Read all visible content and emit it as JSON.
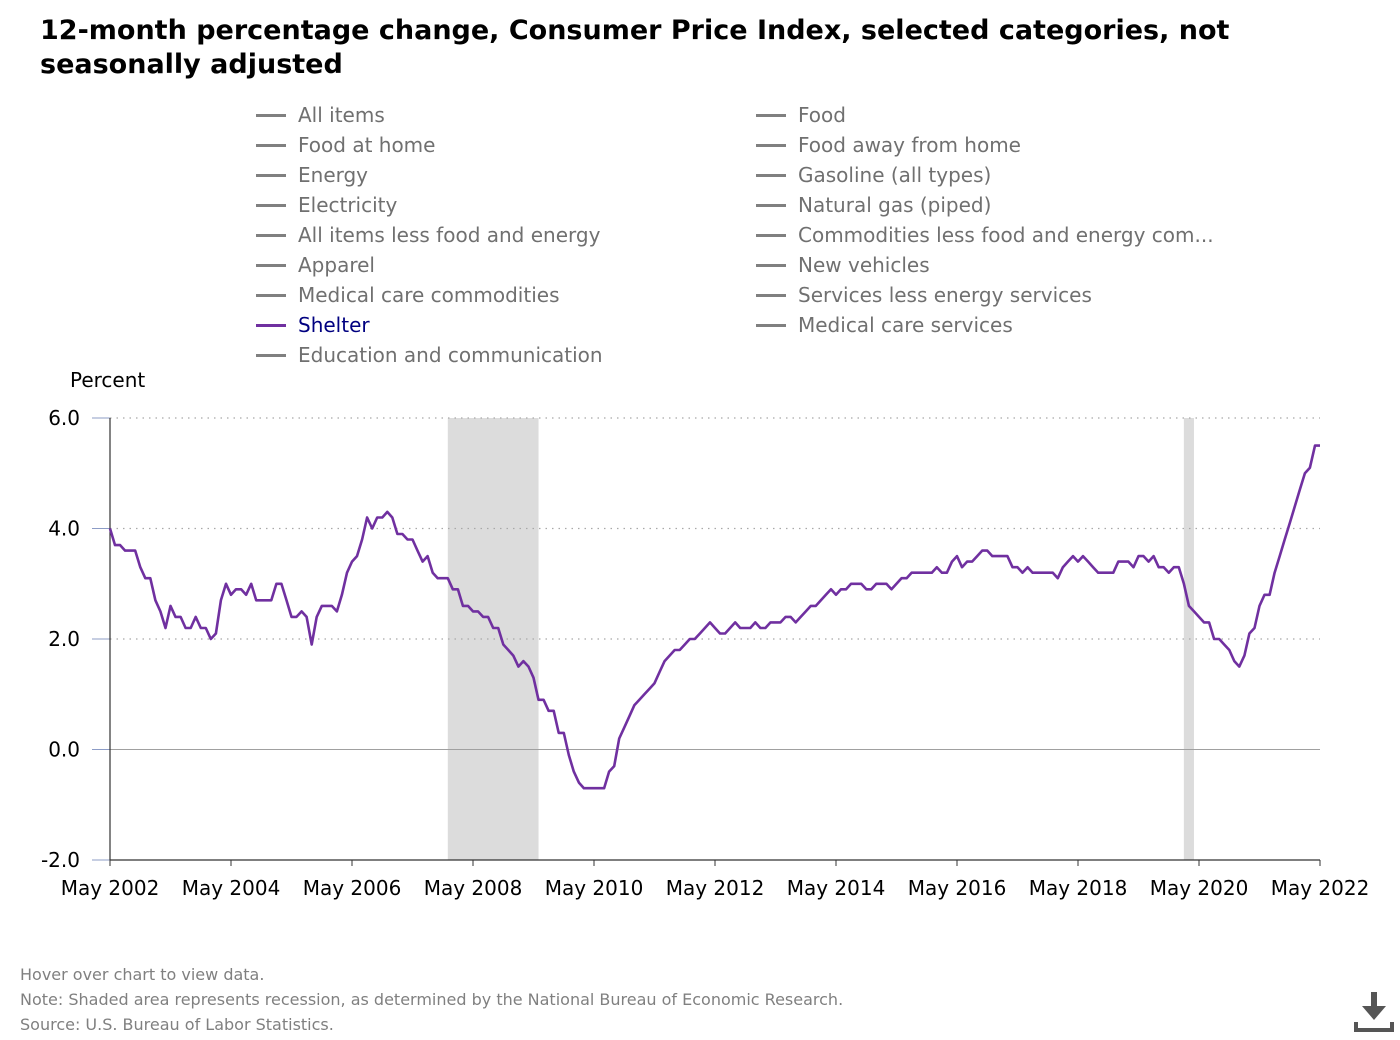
{
  "title": "12-month percentage change, Consumer Price Index, selected categories, not seasonally adjusted",
  "legend": [
    {
      "label": "All items",
      "active": false
    },
    {
      "label": "Food",
      "active": false
    },
    {
      "label": "Food at home",
      "active": false
    },
    {
      "label": "Food away from home",
      "active": false
    },
    {
      "label": "Energy",
      "active": false
    },
    {
      "label": "Gasoline (all types)",
      "active": false
    },
    {
      "label": "Electricity",
      "active": false
    },
    {
      "label": "Natural gas (piped)",
      "active": false
    },
    {
      "label": "All items less food and energy",
      "active": false
    },
    {
      "label": "Commodities less food and energy com...",
      "active": false
    },
    {
      "label": "Apparel",
      "active": false
    },
    {
      "label": "New vehicles",
      "active": false
    },
    {
      "label": "Medical care commodities",
      "active": false
    },
    {
      "label": "Services less energy services",
      "active": false
    },
    {
      "label": "Shelter",
      "active": true
    },
    {
      "label": "Medical care services",
      "active": false
    },
    {
      "label": "Education and communication",
      "active": false
    }
  ],
  "colors": {
    "active_series": "#7030a0",
    "inactive_series": "#808080",
    "recession": "#dcdcdc",
    "active_label": "#000080"
  },
  "footer": {
    "hover_note": "Hover over chart to view data.",
    "note": "Note: Shaded area represents recession, as determined by the National Bureau of Economic Research.",
    "source": "Source: U.S. Bureau of Labor Statistics."
  },
  "icons": {
    "download": "download-icon"
  },
  "chart_data": {
    "type": "line",
    "ylabel": "Percent",
    "ylim": [
      -2.0,
      6.0
    ],
    "yticks": [
      "6.0",
      "4.0",
      "2.0",
      "0.0",
      "-2.0"
    ],
    "xticks": [
      "May 2002",
      "May 2004",
      "May 2006",
      "May 2008",
      "May 2010",
      "May 2012",
      "May 2014",
      "May 2016",
      "May 2018",
      "May 2020",
      "May 2022"
    ],
    "x_range": [
      "May 2002",
      "May 2022"
    ],
    "grid": true,
    "recessions": [
      {
        "start": "Dec 2007",
        "end": "Jun 2009"
      },
      {
        "start": "Feb 2020",
        "end": "Apr 2020"
      }
    ],
    "series": [
      {
        "name": "Shelter",
        "x": [
          "May 2002",
          "Jun 2002",
          "Jul 2002",
          "Aug 2002",
          "Sep 2002",
          "Oct 2002",
          "Nov 2002",
          "Dec 2002",
          "Jan 2003",
          "Feb 2003",
          "Mar 2003",
          "Apr 2003",
          "May 2003",
          "Jun 2003",
          "Jul 2003",
          "Aug 2003",
          "Sep 2003",
          "Oct 2003",
          "Nov 2003",
          "Dec 2003",
          "Jan 2004",
          "Feb 2004",
          "Mar 2004",
          "Apr 2004",
          "May 2004",
          "Jun 2004",
          "Jul 2004",
          "Aug 2004",
          "Sep 2004",
          "Oct 2004",
          "Nov 2004",
          "Dec 2004",
          "Jan 2005",
          "Feb 2005",
          "Mar 2005",
          "Apr 2005",
          "May 2005",
          "Jun 2005",
          "Jul 2005",
          "Aug 2005",
          "Sep 2005",
          "Oct 2005",
          "Nov 2005",
          "Dec 2005",
          "Jan 2006",
          "Feb 2006",
          "Mar 2006",
          "Apr 2006",
          "May 2006",
          "Jun 2006",
          "Jul 2006",
          "Aug 2006",
          "Sep 2006",
          "Oct 2006",
          "Nov 2006",
          "Dec 2006",
          "Jan 2007",
          "Feb 2007",
          "Mar 2007",
          "Apr 2007",
          "May 2007",
          "Jun 2007",
          "Jul 2007",
          "Aug 2007",
          "Sep 2007",
          "Oct 2007",
          "Nov 2007",
          "Dec 2007",
          "Jan 2008",
          "Feb 2008",
          "Mar 2008",
          "Apr 2008",
          "May 2008",
          "Jun 2008",
          "Jul 2008",
          "Aug 2008",
          "Sep 2008",
          "Oct 2008",
          "Nov 2008",
          "Dec 2008",
          "Jan 2009",
          "Feb 2009",
          "Mar 2009",
          "Apr 2009",
          "May 2009",
          "Jun 2009",
          "Jul 2009",
          "Aug 2009",
          "Sep 2009",
          "Oct 2009",
          "Nov 2009",
          "Dec 2009",
          "Jan 2010",
          "Feb 2010",
          "Mar 2010",
          "Apr 2010",
          "May 2010",
          "Jun 2010",
          "Jul 2010",
          "Aug 2010",
          "Sep 2010",
          "Oct 2010",
          "Nov 2010",
          "Dec 2010",
          "Jan 2011",
          "Feb 2011",
          "Mar 2011",
          "Apr 2011",
          "May 2011",
          "Jun 2011",
          "Jul 2011",
          "Aug 2011",
          "Sep 2011",
          "Oct 2011",
          "Nov 2011",
          "Dec 2011",
          "Jan 2012",
          "Feb 2012",
          "Mar 2012",
          "Apr 2012",
          "May 2012",
          "Jun 2012",
          "Jul 2012",
          "Aug 2012",
          "Sep 2012",
          "Oct 2012",
          "Nov 2012",
          "Dec 2012",
          "Jan 2013",
          "Feb 2013",
          "Mar 2013",
          "Apr 2013",
          "May 2013",
          "Jun 2013",
          "Jul 2013",
          "Aug 2013",
          "Sep 2013",
          "Oct 2013",
          "Nov 2013",
          "Dec 2013",
          "Jan 2014",
          "Feb 2014",
          "Mar 2014",
          "Apr 2014",
          "May 2014",
          "Jun 2014",
          "Jul 2014",
          "Aug 2014",
          "Sep 2014",
          "Oct 2014",
          "Nov 2014",
          "Dec 2014",
          "Jan 2015",
          "Feb 2015",
          "Mar 2015",
          "Apr 2015",
          "May 2015",
          "Jun 2015",
          "Jul 2015",
          "Aug 2015",
          "Sep 2015",
          "Oct 2015",
          "Nov 2015",
          "Dec 2015",
          "Jan 2016",
          "Feb 2016",
          "Mar 2016",
          "Apr 2016",
          "May 2016",
          "Jun 2016",
          "Jul 2016",
          "Aug 2016",
          "Sep 2016",
          "Oct 2016",
          "Nov 2016",
          "Dec 2016",
          "Jan 2017",
          "Feb 2017",
          "Mar 2017",
          "Apr 2017",
          "May 2017",
          "Jun 2017",
          "Jul 2017",
          "Aug 2017",
          "Sep 2017",
          "Oct 2017",
          "Nov 2017",
          "Dec 2017",
          "Jan 2018",
          "Feb 2018",
          "Mar 2018",
          "Apr 2018",
          "May 2018",
          "Jun 2018",
          "Jul 2018",
          "Aug 2018",
          "Sep 2018",
          "Oct 2018",
          "Nov 2018",
          "Dec 2018",
          "Jan 2019",
          "Feb 2019",
          "Mar 2019",
          "Apr 2019",
          "May 2019",
          "Jun 2019",
          "Jul 2019",
          "Aug 2019",
          "Sep 2019",
          "Oct 2019",
          "Nov 2019",
          "Dec 2019",
          "Jan 2020",
          "Feb 2020",
          "Mar 2020",
          "Apr 2020",
          "May 2020",
          "Jun 2020",
          "Jul 2020",
          "Aug 2020",
          "Sep 2020",
          "Oct 2020",
          "Nov 2020",
          "Dec 2020",
          "Jan 2021",
          "Feb 2021",
          "Mar 2021",
          "Apr 2021",
          "May 2021",
          "Jun 2021",
          "Jul 2021",
          "Aug 2021",
          "Sep 2021",
          "Oct 2021",
          "Nov 2021",
          "Dec 2021",
          "Jan 2022",
          "Feb 2022",
          "Mar 2022",
          "Apr 2022",
          "May 2022"
        ],
        "values": [
          4.0,
          3.7,
          3.7,
          3.6,
          3.6,
          3.6,
          3.3,
          3.1,
          3.1,
          2.7,
          2.5,
          2.2,
          2.6,
          2.4,
          2.4,
          2.2,
          2.2,
          2.4,
          2.2,
          2.2,
          2.0,
          2.1,
          2.7,
          3.0,
          2.8,
          2.9,
          2.9,
          2.8,
          3.0,
          2.7,
          2.7,
          2.7,
          2.7,
          3.0,
          3.0,
          2.7,
          2.4,
          2.4,
          2.5,
          2.4,
          1.9,
          2.4,
          2.6,
          2.6,
          2.6,
          2.5,
          2.8,
          3.2,
          3.4,
          3.5,
          3.8,
          4.2,
          4.0,
          4.2,
          4.2,
          4.3,
          4.2,
          3.9,
          3.9,
          3.8,
          3.8,
          3.6,
          3.4,
          3.5,
          3.2,
          3.1,
          3.1,
          3.1,
          2.9,
          2.9,
          2.6,
          2.6,
          2.5,
          2.5,
          2.4,
          2.4,
          2.2,
          2.2,
          1.9,
          1.8,
          1.7,
          1.5,
          1.6,
          1.5,
          1.3,
          0.9,
          0.9,
          0.7,
          0.7,
          0.3,
          0.3,
          -0.1,
          -0.4,
          -0.6,
          -0.7,
          -0.7,
          -0.7,
          -0.7,
          -0.7,
          -0.4,
          -0.3,
          0.2,
          0.4,
          0.6,
          0.8,
          0.9,
          1.0,
          1.1,
          1.2,
          1.4,
          1.6,
          1.7,
          1.8,
          1.8,
          1.9,
          2.0,
          2.0,
          2.1,
          2.2,
          2.3,
          2.2,
          2.1,
          2.1,
          2.2,
          2.3,
          2.2,
          2.2,
          2.2,
          2.3,
          2.2,
          2.2,
          2.3,
          2.3,
          2.3,
          2.4,
          2.4,
          2.3,
          2.4,
          2.5,
          2.6,
          2.6,
          2.7,
          2.8,
          2.9,
          2.8,
          2.9,
          2.9,
          3.0,
          3.0,
          3.0,
          2.9,
          2.9,
          3.0,
          3.0,
          3.0,
          2.9,
          3.0,
          3.1,
          3.1,
          3.2,
          3.2,
          3.2,
          3.2,
          3.2,
          3.3,
          3.2,
          3.2,
          3.4,
          3.5,
          3.3,
          3.4,
          3.4,
          3.5,
          3.6,
          3.6,
          3.5,
          3.5,
          3.5,
          3.5,
          3.3,
          3.3,
          3.2,
          3.3,
          3.2,
          3.2,
          3.2,
          3.2,
          3.2,
          3.1,
          3.3,
          3.4,
          3.5,
          3.4,
          3.5,
          3.4,
          3.3,
          3.2,
          3.2,
          3.2,
          3.2,
          3.4,
          3.4,
          3.4,
          3.3,
          3.5,
          3.5,
          3.4,
          3.5,
          3.3,
          3.3,
          3.2,
          3.3,
          3.3,
          3.0,
          2.6,
          2.5,
          2.4,
          2.3,
          2.3,
          2.0,
          2.0,
          1.9,
          1.8,
          1.6,
          1.5,
          1.7,
          2.1,
          2.2,
          2.6,
          2.8,
          2.8,
          3.2,
          3.5,
          3.8,
          4.1,
          4.4,
          4.7,
          5.0,
          5.1,
          5.5,
          5.5
        ]
      }
    ]
  }
}
